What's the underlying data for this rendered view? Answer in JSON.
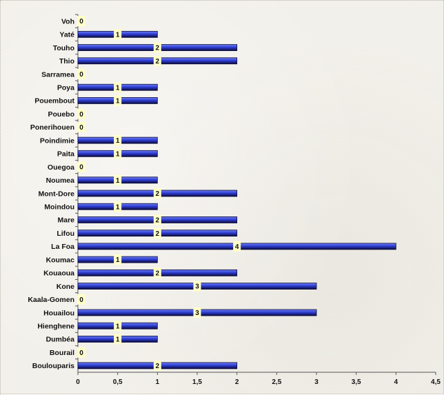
{
  "chart_data": {
    "type": "bar",
    "orientation": "horizontal",
    "categories": [
      "Voh",
      "Yaté",
      "Touho",
      "Thio",
      "Sarramea",
      "Poya",
      "Pouembout",
      "Pouebo",
      "Ponerihouen",
      "Poindimie",
      "Paita",
      "Ouegoa",
      "Noumea",
      "Mont-Dore",
      "Moindou",
      "Mare",
      "Lifou",
      "La Foa",
      "Koumac",
      "Kouaoua",
      "Kone",
      "Kaala-Gomen",
      "Houailou",
      "Hienghene",
      "Dumbéa",
      "Bourail",
      "Boulouparis"
    ],
    "values": [
      0,
      1,
      2,
      2,
      0,
      1,
      1,
      0,
      0,
      1,
      1,
      0,
      1,
      2,
      1,
      2,
      2,
      4,
      1,
      2,
      3,
      0,
      3,
      1,
      1,
      0,
      2
    ],
    "xlim": [
      0,
      4.5
    ],
    "x_ticks": [
      "0",
      "0,5",
      "1",
      "1,5",
      "2",
      "2,5",
      "3",
      "3,5",
      "4",
      "4,5"
    ],
    "x_tick_values": [
      0,
      0.5,
      1,
      1.5,
      2,
      2.5,
      3,
      3.5,
      4,
      4.5
    ],
    "grid": false,
    "legend": "none",
    "data_labels": true,
    "colors": {
      "bar_fill": "#2f3fd6",
      "bar_highlight": "#6f7ff0",
      "bar_edge": "#0a0a3a",
      "label_bg": "#ffffc8",
      "axis": "#555555",
      "background": "#f2f0ea"
    }
  }
}
